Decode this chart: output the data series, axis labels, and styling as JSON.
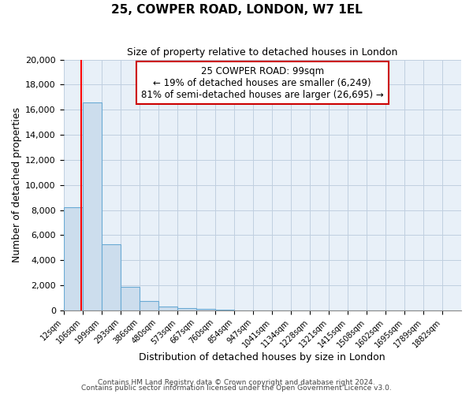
{
  "title": "25, COWPER ROAD, LONDON, W7 1EL",
  "subtitle": "Size of property relative to detached houses in London",
  "xlabel": "Distribution of detached houses by size in London",
  "ylabel": "Number of detached properties",
  "bin_labels": [
    "12sqm",
    "106sqm",
    "199sqm",
    "293sqm",
    "386sqm",
    "480sqm",
    "573sqm",
    "667sqm",
    "760sqm",
    "854sqm",
    "947sqm",
    "1041sqm",
    "1134sqm",
    "1228sqm",
    "1321sqm",
    "1415sqm",
    "1508sqm",
    "1602sqm",
    "1695sqm",
    "1789sqm",
    "1882sqm"
  ],
  "bin_edges": [
    12,
    106,
    199,
    293,
    386,
    480,
    573,
    667,
    760,
    854,
    947,
    1041,
    1134,
    1228,
    1321,
    1415,
    1508,
    1602,
    1695,
    1789,
    1882
  ],
  "bar_heights": [
    8200,
    16600,
    5300,
    1850,
    750,
    300,
    150,
    100,
    80,
    0,
    0,
    0,
    0,
    0,
    0,
    0,
    0,
    0,
    0,
    0
  ],
  "bar_color": "#ccdded",
  "bar_edge_color": "#6aaad4",
  "property_size": 99,
  "annotation_title": "25 COWPER ROAD: 99sqm",
  "annotation_line1": "← 19% of detached houses are smaller (6,249)",
  "annotation_line2": "81% of semi-detached houses are larger (26,695) →",
  "annotation_box_facecolor": "#ffffff",
  "annotation_box_edgecolor": "#cc0000",
  "ylim": [
    0,
    20000
  ],
  "yticks": [
    0,
    2000,
    4000,
    6000,
    8000,
    10000,
    12000,
    14000,
    16000,
    18000,
    20000
  ],
  "grid_color": "#c0cfe0",
  "background_color": "#e8f0f8",
  "footer1": "Contains HM Land Registry data © Crown copyright and database right 2024.",
  "footer2": "Contains public sector information licensed under the Open Government Licence v3.0."
}
